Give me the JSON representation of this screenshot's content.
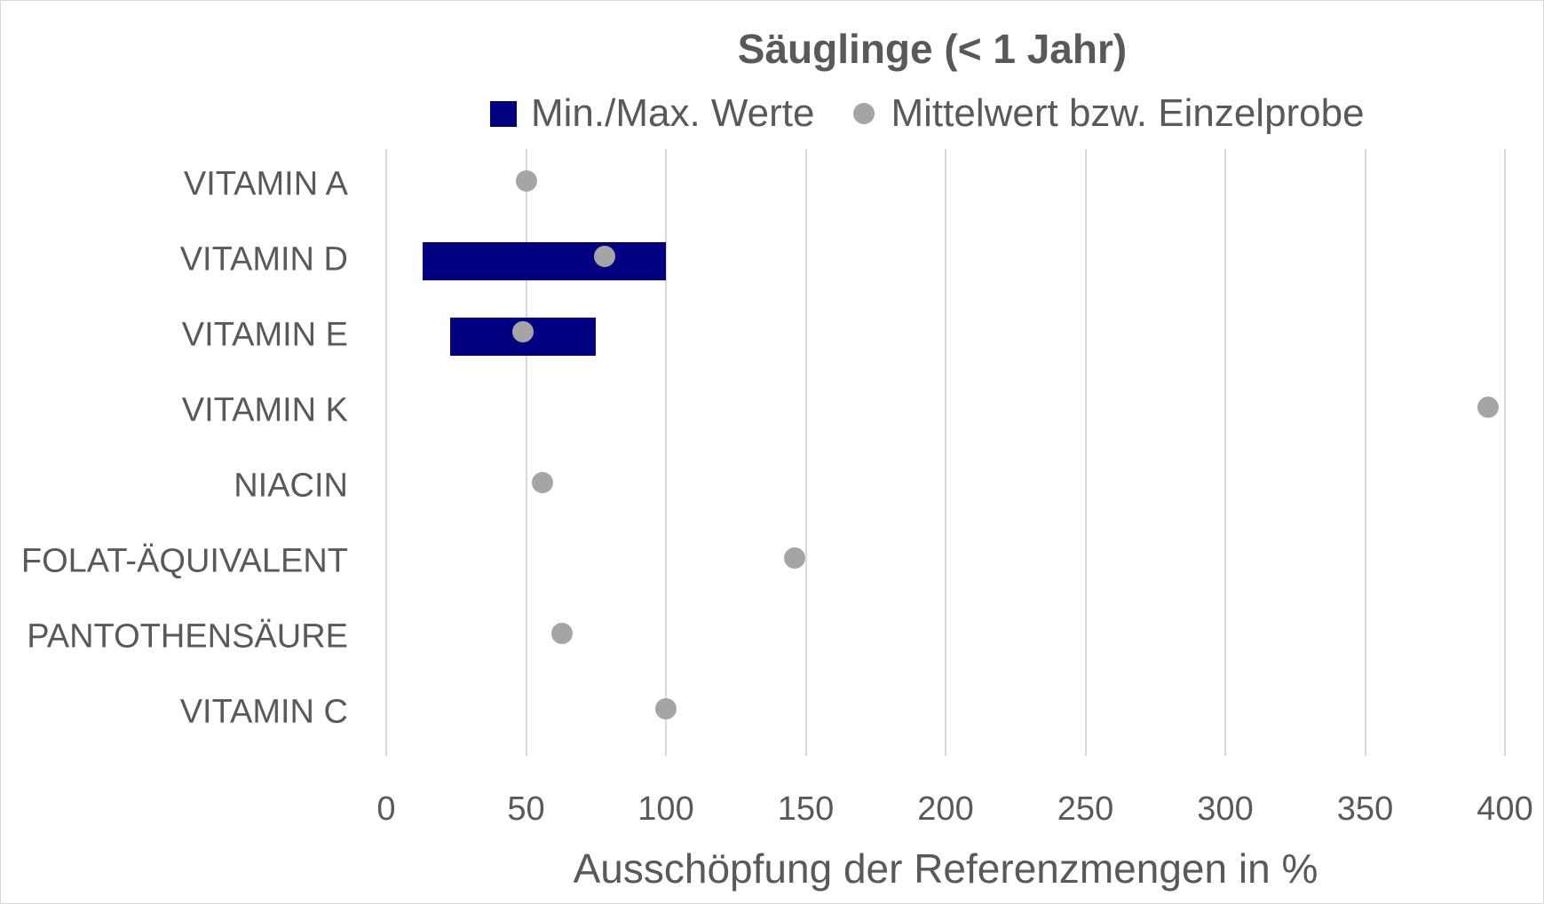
{
  "chart_data": {
    "type": "bar",
    "subtype": "floating-range-bar-with-markers",
    "title": "Säuglinge (< 1 Jahr)",
    "xlabel": "Ausschöpfung der Referenzmengen in %",
    "ylabel": "",
    "xlim": [
      0,
      400
    ],
    "x_ticks": [
      0,
      50,
      100,
      150,
      200,
      250,
      300,
      350,
      400
    ],
    "grid": true,
    "legend_position": "top",
    "orientation": "horizontal",
    "categories": [
      "VITAMIN A",
      "VITAMIN D",
      "VITAMIN E",
      "VITAMIN K",
      "NIACIN",
      "FOLAT-ÄQUIVALENT",
      "PANTOTHENSÄURE",
      "VITAMIN C"
    ],
    "series": [
      {
        "name": "Min./Max. Werte",
        "type": "range-bar",
        "color": "#000080",
        "values": [
          null,
          [
            13,
            100
          ],
          [
            23,
            75
          ],
          null,
          null,
          null,
          null,
          null
        ]
      },
      {
        "name": "Mittelwert bzw. Einzelprobe",
        "type": "scatter",
        "color": "#a5a5a5",
        "values": [
          50,
          78,
          49,
          394,
          56,
          146,
          63,
          100
        ]
      }
    ]
  },
  "title": "Säuglinge (< 1 Jahr)",
  "legend": {
    "items": [
      {
        "label": "Min./Max. Werte",
        "color": "#000080",
        "icon": "square-icon"
      },
      {
        "label": "Mittelwert bzw. Einzelprobe",
        "color": "#a5a5a5",
        "icon": "circle-icon"
      }
    ]
  },
  "axis": {
    "x_title": "Ausschöpfung der Referenzmengen in %",
    "ticks": [
      "0",
      "50",
      "100",
      "150",
      "200",
      "250",
      "300",
      "350",
      "400"
    ]
  },
  "rows": [
    {
      "label": "VITAMIN A"
    },
    {
      "label": "VITAMIN D"
    },
    {
      "label": "VITAMIN E"
    },
    {
      "label": "VITAMIN K"
    },
    {
      "label": "NIACIN"
    },
    {
      "label": "FOLAT-ÄQUIVALENT"
    },
    {
      "label": "PANTOTHENSÄURE"
    },
    {
      "label": "VITAMIN C"
    }
  ]
}
